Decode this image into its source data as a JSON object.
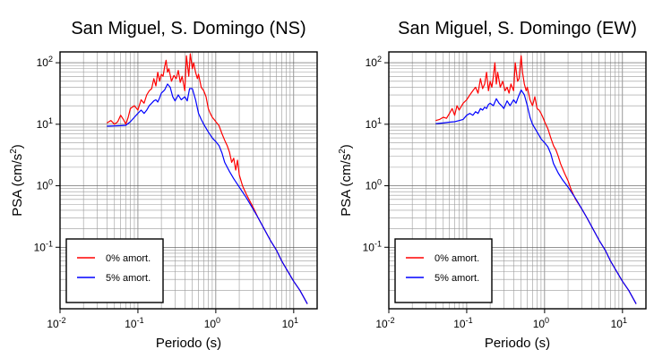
{
  "chart_data": [
    {
      "type": "line",
      "title": "San Miguel, S. Domingo (NS)",
      "xlabel": "Periodo (s)",
      "ylabel_main": "PSA (cm/s",
      "ylabel_sup": "2",
      "ylabel_close": ")",
      "x_scale": "log",
      "y_scale": "log",
      "xlim": [
        0.01,
        20
      ],
      "ylim": [
        0.01,
        150
      ],
      "grid": true,
      "legend_position": "bottom-left",
      "xticks": [
        {
          "value": 0.01,
          "base": "10",
          "exp": "-2"
        },
        {
          "value": 0.1,
          "base": "10",
          "exp": "-1"
        },
        {
          "value": 1,
          "base": "10",
          "exp": "0"
        },
        {
          "value": 10,
          "base": "10",
          "exp": "1"
        }
      ],
      "yticks": [
        {
          "value": 0.1,
          "base": "10",
          "exp": "-1"
        },
        {
          "value": 1,
          "base": "10",
          "exp": "0"
        },
        {
          "value": 10,
          "base": "10",
          "exp": "1"
        },
        {
          "value": 100,
          "base": "10",
          "exp": "2"
        }
      ],
      "series": [
        {
          "name": "0% amort.",
          "color": "#ff0000",
          "x": [
            0.04,
            0.045,
            0.05,
            0.055,
            0.06,
            0.065,
            0.07,
            0.075,
            0.08,
            0.09,
            0.1,
            0.11,
            0.12,
            0.13,
            0.14,
            0.15,
            0.16,
            0.17,
            0.18,
            0.19,
            0.2,
            0.21,
            0.22,
            0.23,
            0.24,
            0.25,
            0.27,
            0.29,
            0.31,
            0.33,
            0.35,
            0.37,
            0.4,
            0.42,
            0.45,
            0.47,
            0.5,
            0.52,
            0.55,
            0.58,
            0.6,
            0.65,
            0.7,
            0.75,
            0.8,
            0.85,
            0.9,
            0.95,
            1.0,
            1.1,
            1.2,
            1.3,
            1.4,
            1.5,
            1.6,
            1.7,
            1.8,
            1.9,
            2.0,
            2.2,
            2.5,
            3,
            3.5,
            4,
            5,
            6,
            7,
            8,
            10,
            12,
            15
          ],
          "y": [
            10.5,
            11.5,
            10,
            11,
            14,
            12,
            10,
            13,
            18,
            20,
            17,
            25,
            22,
            30,
            35,
            38,
            55,
            42,
            70,
            50,
            65,
            60,
            85,
            110,
            70,
            80,
            50,
            62,
            55,
            75,
            48,
            60,
            35,
            130,
            60,
            140,
            80,
            100,
            70,
            55,
            65,
            40,
            35,
            28,
            18,
            15,
            13,
            12,
            11,
            9.5,
            7,
            5.5,
            4.5,
            3.5,
            2.4,
            2.8,
            1.8,
            2.6,
            1.5,
            1.0,
            0.7,
            0.45,
            0.3,
            0.22,
            0.13,
            0.09,
            0.06,
            0.045,
            0.028,
            0.02,
            0.012
          ]
        },
        {
          "name": "5% amort.",
          "color": "#0000ff",
          "x": [
            0.04,
            0.05,
            0.06,
            0.07,
            0.08,
            0.09,
            0.1,
            0.11,
            0.12,
            0.13,
            0.14,
            0.15,
            0.16,
            0.17,
            0.18,
            0.19,
            0.2,
            0.22,
            0.24,
            0.26,
            0.28,
            0.3,
            0.33,
            0.36,
            0.4,
            0.43,
            0.46,
            0.5,
            0.55,
            0.6,
            0.65,
            0.7,
            0.8,
            0.9,
            1.0,
            1.1,
            1.2,
            1.3,
            1.5,
            1.7,
            2.0,
            2.5,
            3,
            3.5,
            4,
            5,
            6,
            7,
            8,
            10,
            12,
            15
          ],
          "y": [
            9.3,
            9.4,
            9.5,
            9.6,
            11,
            13,
            15,
            17,
            15,
            17,
            20,
            22,
            24,
            25,
            23,
            27,
            32,
            36,
            45,
            40,
            28,
            24,
            30,
            25,
            28,
            24,
            38,
            38,
            25,
            15,
            12,
            10,
            7.5,
            6,
            5.2,
            4.5,
            3.4,
            2.4,
            1.7,
            1.3,
            0.95,
            0.62,
            0.42,
            0.3,
            0.22,
            0.13,
            0.09,
            0.06,
            0.045,
            0.028,
            0.02,
            0.012
          ]
        }
      ]
    },
    {
      "type": "line",
      "title": "San Miguel, S. Domingo (EW)",
      "xlabel": "Periodo (s)",
      "ylabel_main": "PSA (cm/s",
      "ylabel_sup": "2",
      "ylabel_close": ")",
      "x_scale": "log",
      "y_scale": "log",
      "xlim": [
        0.01,
        20
      ],
      "ylim": [
        0.01,
        150
      ],
      "grid": true,
      "legend_position": "bottom-left",
      "xticks": [
        {
          "value": 0.01,
          "base": "10",
          "exp": "-2"
        },
        {
          "value": 0.1,
          "base": "10",
          "exp": "-1"
        },
        {
          "value": 1,
          "base": "10",
          "exp": "0"
        },
        {
          "value": 10,
          "base": "10",
          "exp": "1"
        }
      ],
      "yticks": [
        {
          "value": 0.1,
          "base": "10",
          "exp": "-1"
        },
        {
          "value": 1,
          "base": "10",
          "exp": "0"
        },
        {
          "value": 10,
          "base": "10",
          "exp": "1"
        },
        {
          "value": 100,
          "base": "10",
          "exp": "2"
        }
      ],
      "series": [
        {
          "name": "0% amort.",
          "color": "#ff0000",
          "x": [
            0.04,
            0.045,
            0.05,
            0.055,
            0.06,
            0.065,
            0.07,
            0.075,
            0.08,
            0.09,
            0.1,
            0.11,
            0.12,
            0.13,
            0.14,
            0.15,
            0.16,
            0.17,
            0.18,
            0.19,
            0.2,
            0.21,
            0.22,
            0.23,
            0.24,
            0.25,
            0.27,
            0.29,
            0.31,
            0.33,
            0.35,
            0.37,
            0.4,
            0.42,
            0.45,
            0.47,
            0.5,
            0.52,
            0.55,
            0.58,
            0.6,
            0.65,
            0.7,
            0.75,
            0.8,
            0.85,
            0.9,
            0.95,
            1.0,
            1.1,
            1.2,
            1.3,
            1.4,
            1.5,
            1.6,
            1.8,
            2.0,
            2.2,
            2.5,
            3,
            3.5,
            4,
            5,
            6,
            7,
            8,
            10,
            12,
            15
          ],
          "y": [
            11.5,
            12,
            13,
            12.5,
            15,
            18,
            14,
            20,
            17,
            22,
            25,
            30,
            35,
            40,
            32,
            55,
            38,
            45,
            70,
            35,
            50,
            40,
            60,
            100,
            45,
            70,
            40,
            50,
            35,
            40,
            32,
            45,
            35,
            100,
            50,
            55,
            130,
            70,
            45,
            35,
            40,
            25,
            20,
            28,
            18,
            17,
            15,
            13,
            11,
            8.5,
            6,
            4.5,
            3.8,
            3.0,
            2.3,
            1.6,
            1.2,
            0.85,
            0.6,
            0.42,
            0.3,
            0.22,
            0.13,
            0.09,
            0.06,
            0.045,
            0.028,
            0.02,
            0.012
          ]
        },
        {
          "name": "5% amort.",
          "color": "#0000ff",
          "x": [
            0.04,
            0.05,
            0.06,
            0.07,
            0.08,
            0.09,
            0.1,
            0.11,
            0.12,
            0.13,
            0.14,
            0.15,
            0.16,
            0.17,
            0.18,
            0.19,
            0.2,
            0.22,
            0.24,
            0.26,
            0.28,
            0.3,
            0.33,
            0.36,
            0.4,
            0.43,
            0.46,
            0.5,
            0.55,
            0.6,
            0.65,
            0.7,
            0.8,
            0.9,
            1.0,
            1.1,
            1.2,
            1.3,
            1.5,
            1.7,
            2.0,
            2.5,
            3,
            3.5,
            4,
            5,
            6,
            7,
            8,
            10,
            12,
            15
          ],
          "y": [
            10.2,
            10.5,
            10.8,
            11,
            11.5,
            12,
            14,
            15,
            14,
            16,
            15,
            18,
            17,
            19,
            18,
            21,
            22,
            20,
            26,
            22,
            20,
            18,
            24,
            20,
            25,
            22,
            28,
            36,
            30,
            20,
            13,
            10,
            7.5,
            5.8,
            5.0,
            4.3,
            3.3,
            2.3,
            1.6,
            1.25,
            0.95,
            0.62,
            0.42,
            0.3,
            0.22,
            0.13,
            0.09,
            0.06,
            0.045,
            0.028,
            0.02,
            0.012
          ]
        }
      ]
    }
  ]
}
